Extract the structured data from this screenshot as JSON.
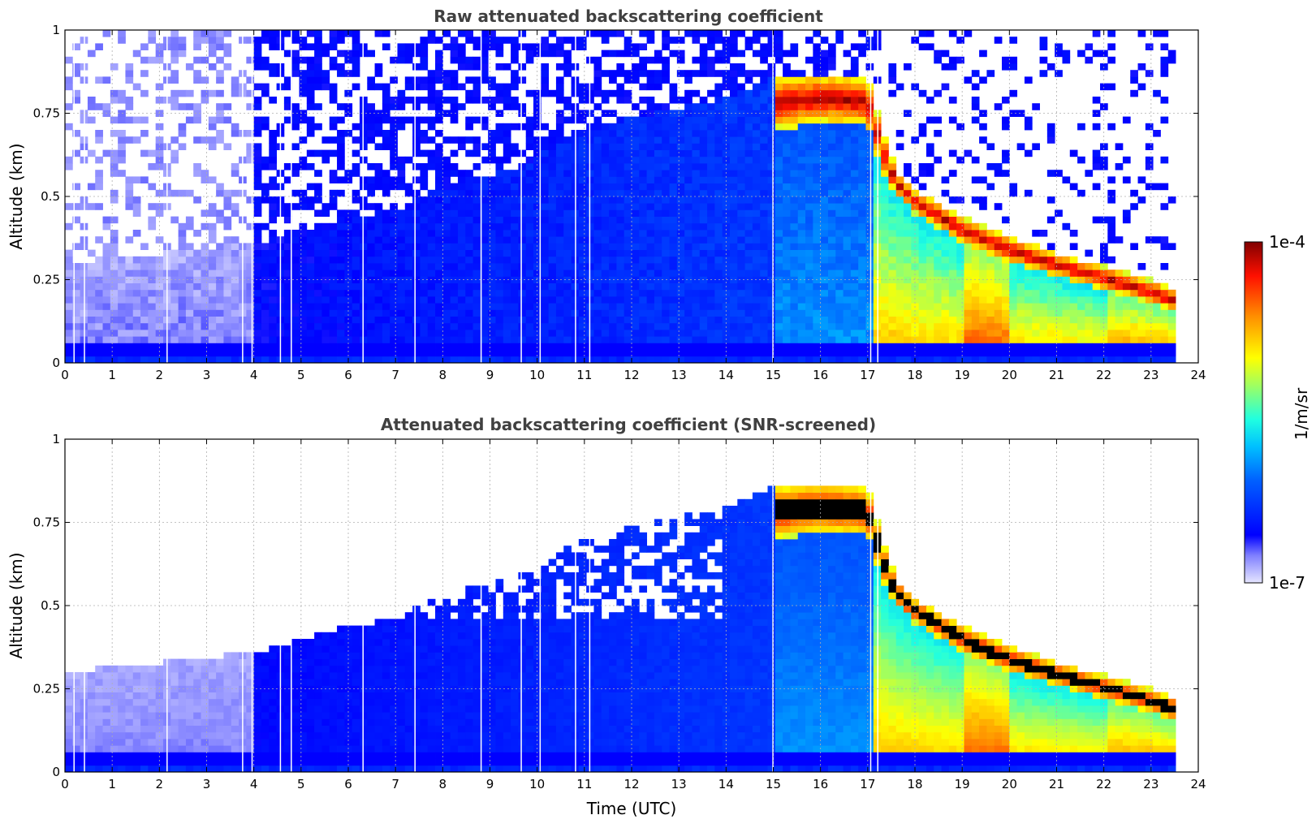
{
  "chart_data": [
    {
      "type": "heatmap",
      "title": "Raw attenuated backscattering coefficient",
      "xlabel": "",
      "ylabel": "Altitude (km)",
      "xlim": [
        0,
        24
      ],
      "ylim": [
        0,
        1
      ],
      "xticks": [
        "0",
        "1",
        "2",
        "3",
        "4",
        "5",
        "6",
        "7",
        "8",
        "9",
        "10",
        "11",
        "12",
        "13",
        "14",
        "15",
        "16",
        "17",
        "18",
        "19",
        "20",
        "21",
        "22",
        "23",
        "24"
      ],
      "yticks": [
        "0",
        "0.25",
        "0.5",
        "0.75",
        "1"
      ],
      "grid": true,
      "screened": false
    },
    {
      "type": "heatmap",
      "title": "Attenuated backscattering coefficient (SNR-screened)",
      "xlabel": "Time (UTC)",
      "ylabel": "Altitude (km)",
      "xlim": [
        0,
        24
      ],
      "ylim": [
        0,
        1
      ],
      "xticks": [
        "0",
        "1",
        "2",
        "3",
        "4",
        "5",
        "6",
        "7",
        "8",
        "9",
        "10",
        "11",
        "12",
        "13",
        "14",
        "15",
        "16",
        "17",
        "18",
        "19",
        "20",
        "21",
        "22",
        "23",
        "24"
      ],
      "yticks": [
        "0",
        "0.25",
        "0.5",
        "0.75",
        "1"
      ],
      "grid": true,
      "screened": true
    }
  ],
  "colorbar": {
    "label": "1/m/sr",
    "max_label": "1e-4",
    "min_label": "1e-7",
    "range": [
      1e-07,
      0.0001
    ],
    "scale": "log",
    "colormap": "jet"
  },
  "data_extent_hours": 23.55,
  "layer_top_km": [
    [
      0,
      0.3
    ],
    [
      2,
      0.33
    ],
    [
      4,
      0.36
    ],
    [
      5,
      0.4
    ],
    [
      6,
      0.44
    ],
    [
      7,
      0.46
    ],
    [
      7.5,
      0.5
    ],
    [
      8.5,
      0.55
    ],
    [
      9.5,
      0.58
    ],
    [
      10,
      0.62
    ],
    [
      11,
      0.7
    ],
    [
      12.5,
      0.75
    ],
    [
      14,
      0.8
    ],
    [
      15,
      0.86
    ],
    [
      16,
      0.87
    ],
    [
      17,
      0.86
    ],
    [
      17.3,
      0.7
    ],
    [
      17.6,
      0.58
    ],
    [
      18,
      0.52
    ],
    [
      19,
      0.44
    ],
    [
      20,
      0.38
    ],
    [
      21,
      0.33
    ],
    [
      22,
      0.29
    ],
    [
      23,
      0.25
    ],
    [
      23.55,
      0.22
    ]
  ],
  "cloud_base_km": [
    [
      15,
      0.7
    ],
    [
      16,
      0.72
    ],
    [
      17,
      0.71
    ],
    [
      17.3,
      0.58
    ],
    [
      17.6,
      0.5
    ],
    [
      18,
      0.45
    ],
    [
      19,
      0.36
    ],
    [
      20,
      0.3
    ],
    [
      21,
      0.26
    ],
    [
      22,
      0.22
    ],
    [
      23,
      0.18
    ],
    [
      23.55,
      0.15
    ]
  ],
  "vertical_gaps_hours": [
    0.18,
    0.4,
    2.15,
    3.75,
    3.95,
    4.55,
    4.78,
    6.3,
    7.4,
    8.8,
    9.65,
    10.05,
    10.8,
    11.1,
    14.98,
    17.05,
    17.2
  ]
}
